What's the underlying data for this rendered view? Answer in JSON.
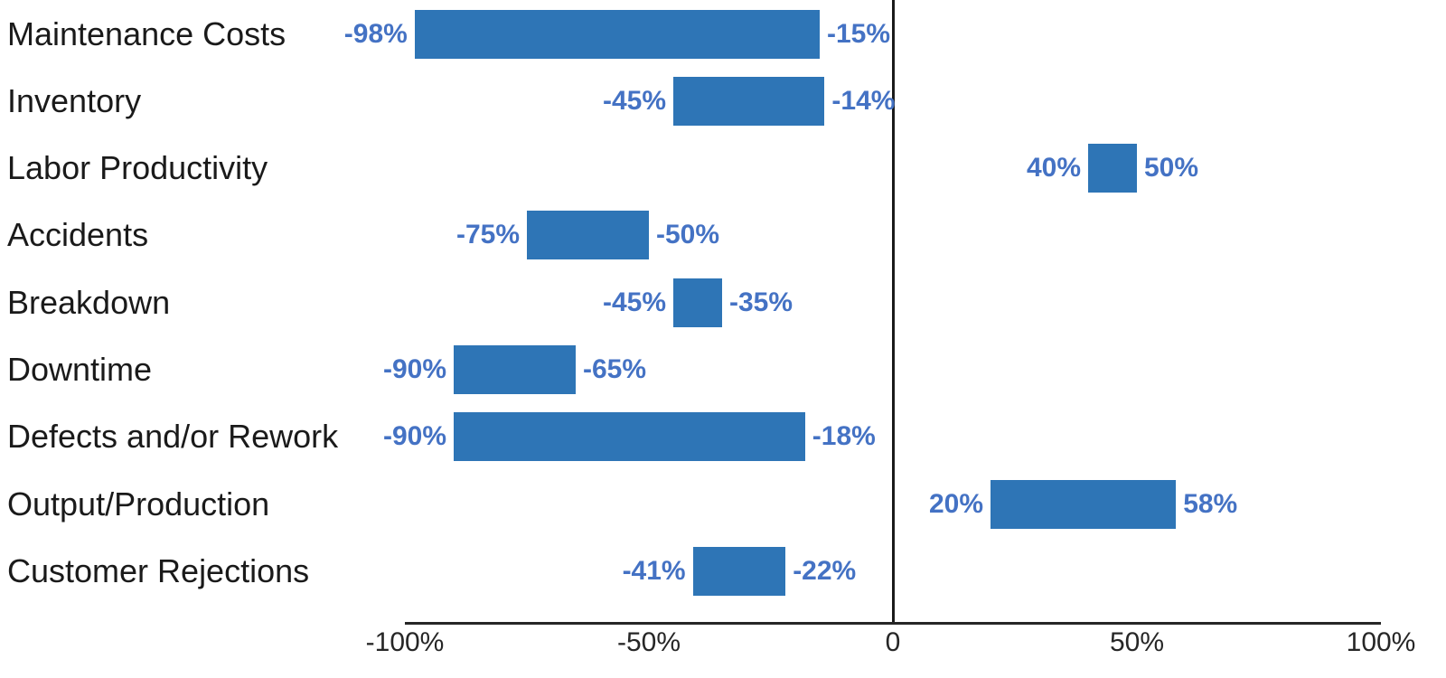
{
  "chart_data": {
    "type": "bar",
    "subtype": "horizontal-range",
    "title": "",
    "categories": [
      "Maintenance Costs",
      "Inventory",
      "Labor Productivity",
      "Accidents",
      "Breakdown",
      "Downtime",
      "Defects and/or Rework",
      "Output/Production",
      "Customer Rejections"
    ],
    "series": [
      {
        "name": "range",
        "values": [
          [
            -98,
            -15
          ],
          [
            -45,
            -14
          ],
          [
            40,
            50
          ],
          [
            -75,
            -50
          ],
          [
            -45,
            -35
          ],
          [
            -90,
            -65
          ],
          [
            -90,
            -18
          ],
          [
            20,
            58
          ],
          [
            -41,
            -22
          ]
        ]
      }
    ],
    "value_labels": [
      [
        "-98%",
        "-15%"
      ],
      [
        "-45%",
        "-14%"
      ],
      [
        "40%",
        "50%"
      ],
      [
        "-75%",
        "-50%"
      ],
      [
        "-45%",
        "-35%"
      ],
      [
        "-90%",
        "-65%"
      ],
      [
        "-90%",
        "-18%"
      ],
      [
        "20%",
        "58%"
      ],
      [
        "-41%",
        "-22%"
      ]
    ],
    "xlabel": "",
    "ylabel": "",
    "xlim": [
      -100,
      100
    ],
    "x_ticks": [
      {
        "value": -100,
        "label": "-100%"
      },
      {
        "value": -50,
        "label": "-50%"
      },
      {
        "value": 0,
        "label": "0"
      },
      {
        "value": 50,
        "label": "50%"
      },
      {
        "value": 100,
        "label": "100%"
      }
    ],
    "grid": false,
    "legend": false,
    "colors": {
      "bar": "#2E75B6",
      "value_label": "#4472C4",
      "axis": "#262626",
      "category_label": "#1A1A1A",
      "background": "#FFFFFF"
    }
  }
}
